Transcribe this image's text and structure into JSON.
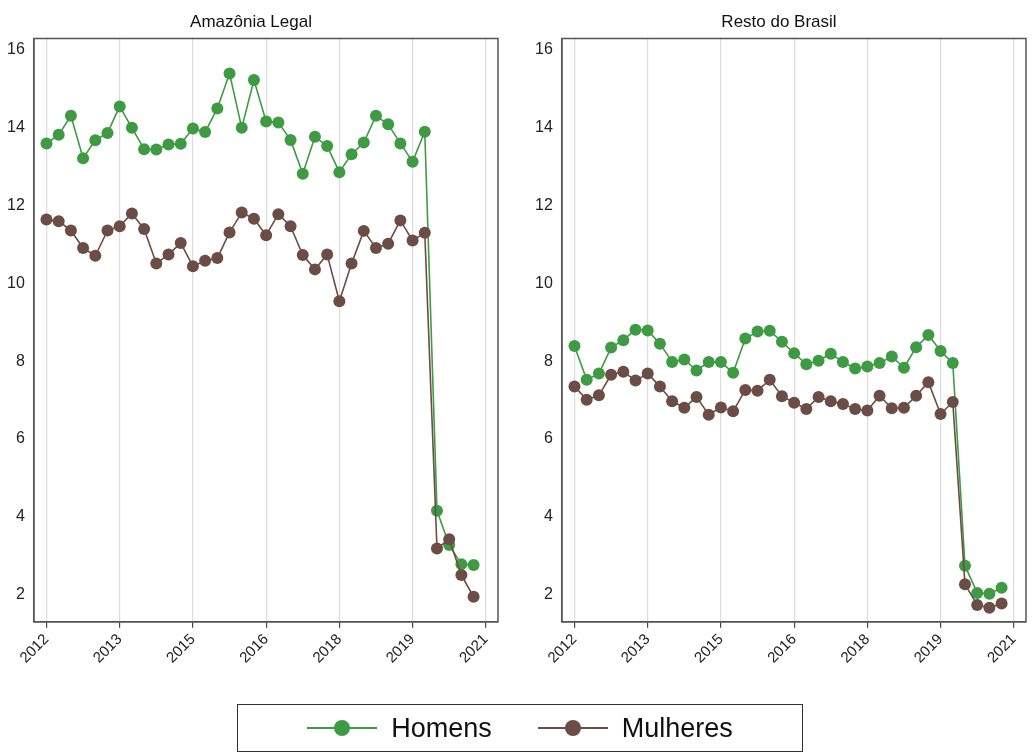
{
  "chart_data": [
    {
      "type": "line",
      "title": "Amazônia Legal",
      "x": [
        2012,
        2012.25,
        2012.5,
        2012.75,
        2013,
        2013.25,
        2013.5,
        2013.75,
        2014,
        2014.25,
        2014.5,
        2014.75,
        2015,
        2015.25,
        2015.5,
        2015.75,
        2016,
        2016.25,
        2016.5,
        2016.75,
        2017,
        2017.25,
        2017.5,
        2017.75,
        2018,
        2018.25,
        2018.5,
        2018.75,
        2019,
        2019.25,
        2019.5,
        2019.75,
        2020,
        2020.25,
        2020.5,
        2020.75
      ],
      "series": [
        {
          "name": "Homens",
          "color": "#3e9b43",
          "values": [
            13.6,
            13.82,
            14.31,
            13.22,
            13.68,
            13.87,
            14.55,
            14.0,
            13.45,
            13.44,
            13.57,
            13.59,
            13.98,
            13.89,
            14.5,
            15.4,
            14.0,
            15.23,
            14.16,
            14.14,
            13.69,
            12.82,
            13.77,
            13.53,
            12.86,
            13.32,
            13.62,
            14.31,
            14.09,
            13.6,
            13.13,
            13.9,
            4.15,
            3.27,
            2.78,
            2.76
          ]
        },
        {
          "name": "Mulheres",
          "color": "#6b4d45",
          "values": [
            11.64,
            11.6,
            11.36,
            10.91,
            10.71,
            11.36,
            11.47,
            11.8,
            11.4,
            10.51,
            10.74,
            11.04,
            10.44,
            10.58,
            10.65,
            11.31,
            11.82,
            11.66,
            11.24,
            11.78,
            11.47,
            10.73,
            10.36,
            10.74,
            9.54,
            10.51,
            11.35,
            10.91,
            11.02,
            11.62,
            11.1,
            11.3,
            3.18,
            3.42,
            2.5,
            1.94
          ]
        }
      ],
      "xlim": [
        2011.74,
        2021.25
      ],
      "xticks": [
        {
          "value": 2012,
          "label": "2012"
        },
        {
          "value": 2013.5,
          "label": "2013"
        },
        {
          "value": 2015,
          "label": "2015"
        },
        {
          "value": 2016.5,
          "label": "2016"
        },
        {
          "value": 2018,
          "label": "2018"
        },
        {
          "value": 2019.5,
          "label": "2019"
        },
        {
          "value": 2021,
          "label": "2021"
        }
      ],
      "ylim": [
        1.3,
        16.3
      ],
      "yticks": [
        2,
        4,
        6,
        8,
        10,
        12,
        14,
        16
      ],
      "grid": "x",
      "marker": "circle",
      "line_style": "solid",
      "legend": "bottom"
    },
    {
      "type": "line",
      "title": "Resto do Brasil",
      "x": [
        2012,
        2012.25,
        2012.5,
        2012.75,
        2013,
        2013.25,
        2013.5,
        2013.75,
        2014,
        2014.25,
        2014.5,
        2014.75,
        2015,
        2015.25,
        2015.5,
        2015.75,
        2016,
        2016.25,
        2016.5,
        2016.75,
        2017,
        2017.25,
        2017.5,
        2017.75,
        2018,
        2018.25,
        2018.5,
        2018.75,
        2019,
        2019.25,
        2019.5,
        2019.75,
        2020,
        2020.25,
        2020.5,
        2020.75
      ],
      "series": [
        {
          "color": "#3e9b43",
          "values": [
            8.39,
            7.52,
            7.68,
            8.35,
            8.54,
            8.81,
            8.79,
            8.45,
            7.98,
            8.04,
            7.76,
            7.98,
            7.98,
            7.7,
            8.58,
            8.76,
            8.78,
            8.5,
            8.2,
            7.92,
            8.01,
            8.19,
            7.98,
            7.81,
            7.86,
            7.95,
            8.12,
            7.83,
            8.36,
            8.67,
            8.26,
            7.95,
            2.74,
            2.04,
            2.02,
            2.17
          ]
        },
        {
          "color": "#6b4d45",
          "values": [
            7.35,
            7.01,
            7.12,
            7.65,
            7.73,
            7.5,
            7.68,
            7.35,
            6.97,
            6.8,
            7.08,
            6.62,
            6.81,
            6.71,
            7.26,
            7.24,
            7.52,
            7.1,
            6.93,
            6.77,
            7.08,
            6.97,
            6.9,
            6.77,
            6.73,
            7.11,
            6.79,
            6.8,
            7.11,
            7.46,
            6.64,
            6.95,
            2.26,
            1.73,
            1.66,
            1.77
          ]
        }
      ],
      "xlim": [
        2011.74,
        2021.25
      ],
      "xticks": [
        {
          "value": 2012,
          "label": "2012"
        },
        {
          "value": 2013.5,
          "label": "2013"
        },
        {
          "value": 2015,
          "label": "2015"
        },
        {
          "value": 2016.5,
          "label": "2016"
        },
        {
          "value": 2018,
          "label": "2018"
        },
        {
          "value": 2019.5,
          "label": "2019"
        },
        {
          "value": 2021,
          "label": "2021"
        }
      ],
      "ylim": [
        1.3,
        16.3
      ],
      "yticks": [
        2,
        4,
        6,
        8,
        10,
        12,
        14,
        16
      ],
      "grid": "x",
      "marker": "circle",
      "line_style": "solid"
    }
  ]
}
